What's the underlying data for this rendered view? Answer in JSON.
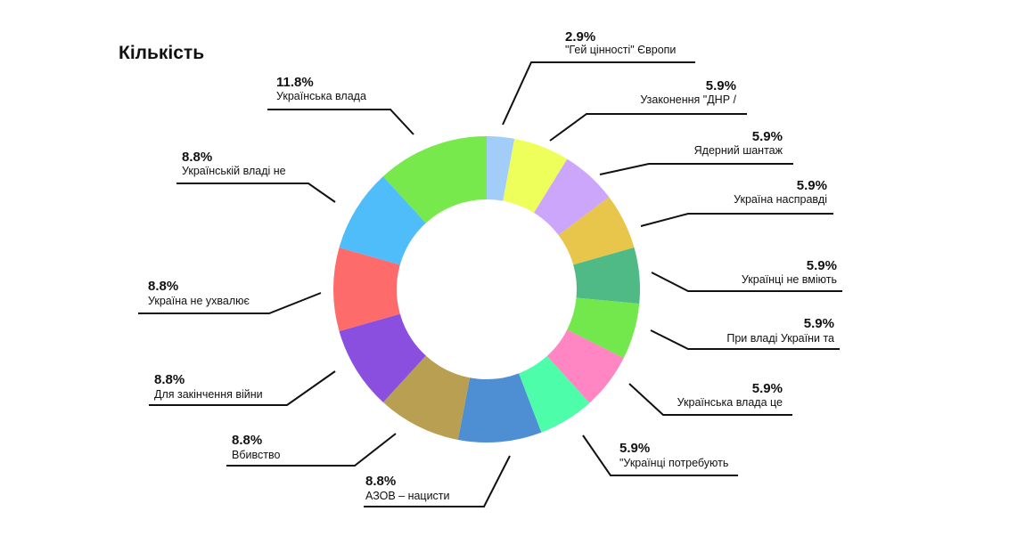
{
  "chart_data": {
    "type": "pie",
    "donut": true,
    "title": "Кількість",
    "legend": "none",
    "colors": [
      "#a3cdf9",
      "#eeff5b",
      "#cba6fb",
      "#e8c64b",
      "#4fba86",
      "#72e84c",
      "#ff86c2",
      "#4dfda9",
      "#4e8ed2",
      "#b89f52",
      "#8a4fde",
      "#fd6b6b",
      "#4ebdfa",
      "#77e94d"
    ],
    "slices": [
      {
        "pct": "2.9%",
        "label": "\"Гей цінності\" Європи",
        "value": 2.9
      },
      {
        "pct": "5.9%",
        "label": "Узаконення \"ДНР /",
        "value": 5.9
      },
      {
        "pct": "5.9%",
        "label": "Ядерний шантаж",
        "value": 5.9
      },
      {
        "pct": "5.9%",
        "label": "Україна насправді",
        "value": 5.9
      },
      {
        "pct": "5.9%",
        "label": "Українці не вміють",
        "value": 5.9
      },
      {
        "pct": "5.9%",
        "label": "При владі України та",
        "value": 5.9
      },
      {
        "pct": "5.9%",
        "label": "Українська влада це",
        "value": 5.9
      },
      {
        "pct": "5.9%",
        "label": "\"Українці потребують",
        "value": 5.9
      },
      {
        "pct": "8.8%",
        "label": "АЗОВ – нацисти",
        "value": 8.8
      },
      {
        "pct": "8.8%",
        "label": "Вбивство",
        "value": 8.8
      },
      {
        "pct": "8.8%",
        "label": "Для закінчення війни",
        "value": 8.8
      },
      {
        "pct": "8.8%",
        "label": "Україна не ухвалює",
        "value": 8.8
      },
      {
        "pct": "8.8%",
        "label": "Українській владі не",
        "value": 8.8
      },
      {
        "pct": "11.8%",
        "label": "Українська влада",
        "value": 11.8
      }
    ]
  }
}
